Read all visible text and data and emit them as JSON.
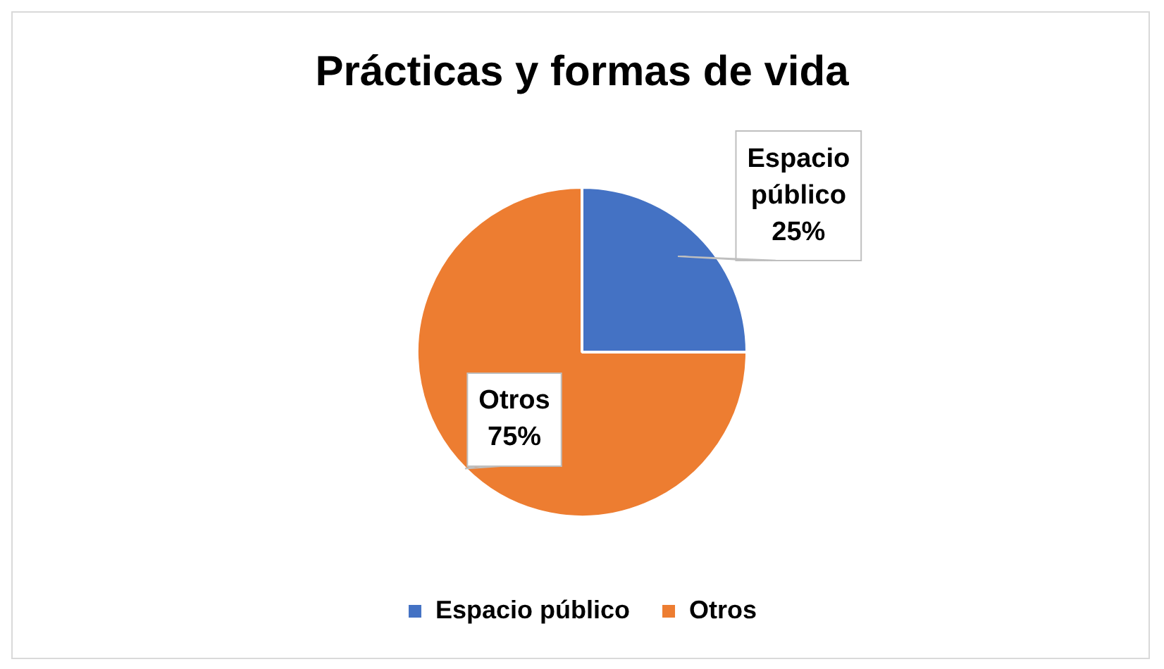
{
  "chart_data": {
    "type": "pie",
    "title": "Prácticas y formas de vida",
    "categories": [
      "Espacio público",
      "Otros"
    ],
    "values": [
      25,
      75
    ],
    "colors": [
      "#4472c4",
      "#ed7d31"
    ],
    "value_labels": [
      "25%",
      "75%"
    ],
    "legend": "bottom"
  }
}
